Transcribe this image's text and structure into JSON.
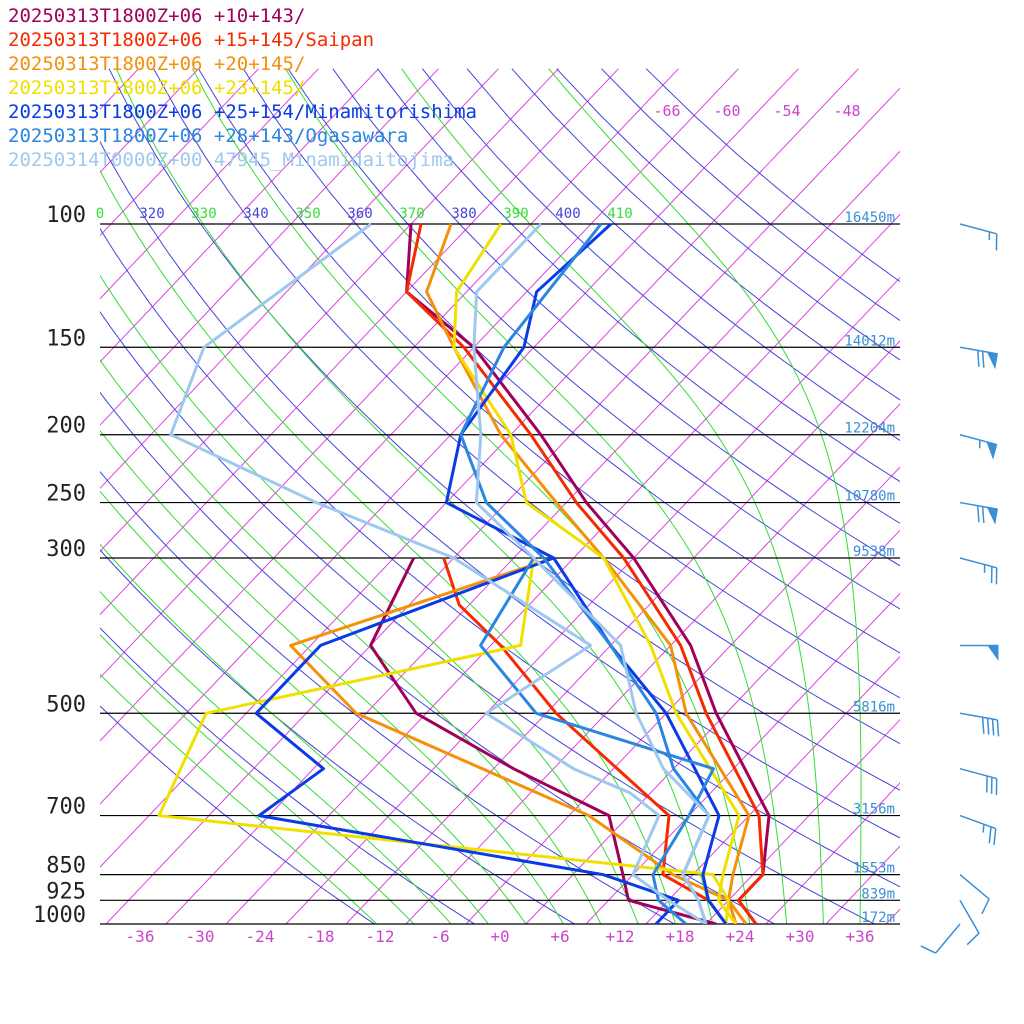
{
  "legend": [
    {
      "label": "20250313T1800Z+06 +10+143/",
      "color": "#a0005a"
    },
    {
      "label": "20250313T1800Z+06 +15+145/Saipan",
      "color": "#f52a00"
    },
    {
      "label": "20250313T1800Z+06 +20+145/",
      "color": "#f5900a"
    },
    {
      "label": "20250313T1800Z+06 +23+145/",
      "color": "#f0e000"
    },
    {
      "label": "20250313T1800Z+06 +25+154/Minamitorishima",
      "color": "#0a3ce6"
    },
    {
      "label": "20250313T1800Z+06 +28+143/Ogasawara",
      "color": "#2a86e0"
    },
    {
      "label": "20250314T0000Z+00 47945_Minamidaitojima",
      "color": "#9ec8f0"
    }
  ],
  "colors": {
    "isobar": "#000000",
    "isotherm": "#dd44dd",
    "dry_adiabat": "#4444dd",
    "moist_adiabat": "#33dd33",
    "height_label": "#3a8fd6",
    "wind_barb": "#3a8fd6"
  },
  "chart_data": {
    "type": "skew-t log-p",
    "title": "",
    "xlabel": "",
    "ylabel": "",
    "pressure_levels": [
      {
        "p": 100,
        "label": "100",
        "height": "16450m"
      },
      {
        "p": 150,
        "label": "150",
        "height": "14012m"
      },
      {
        "p": 200,
        "label": "200",
        "height": "12204m"
      },
      {
        "p": 250,
        "label": "250",
        "height": "10780m"
      },
      {
        "p": 300,
        "label": "300",
        "height": "9538m"
      },
      {
        "p": 500,
        "label": "500",
        "height": "5816m"
      },
      {
        "p": 700,
        "label": "700",
        "height": "3156m"
      },
      {
        "p": 850,
        "label": "850",
        "height": "1553m"
      },
      {
        "p": 925,
        "label": "925",
        "height": "839m"
      },
      {
        "p": 1000,
        "label": "1000",
        "height": "172m"
      }
    ],
    "temperature_ticks": [
      "-36",
      "-30",
      "-24",
      "-18",
      "-12",
      "-6",
      "+0",
      "+6",
      "+12",
      "+18",
      "+24",
      "+30",
      "+36"
    ],
    "mixing_ratio_labels": [
      "-66",
      "-60",
      "-54",
      "-48"
    ],
    "theta_labels": [
      {
        "text": "0",
        "kind": "moist"
      },
      {
        "text": "320",
        "kind": "dry"
      },
      {
        "text": "330",
        "kind": "moist"
      },
      {
        "text": "340",
        "kind": "dry"
      },
      {
        "text": "350",
        "kind": "moist"
      },
      {
        "text": "360",
        "kind": "dry"
      },
      {
        "text": "370",
        "kind": "moist"
      },
      {
        "text": "380",
        "kind": "dry"
      },
      {
        "text": "390",
        "kind": "moist"
      },
      {
        "text": "400",
        "kind": "dry"
      },
      {
        "text": "410",
        "kind": "moist"
      }
    ],
    "series": [
      {
        "name": "20250313T1800Z+06 +10+143/",
        "color": "#a0005a",
        "temperature": [
          [
            1000,
            25
          ],
          [
            925,
            21
          ],
          [
            850,
            21
          ],
          [
            700,
            16
          ],
          [
            500,
            1
          ],
          [
            400,
            -8
          ],
          [
            300,
            -22
          ],
          [
            250,
            -32
          ],
          [
            200,
            -43
          ],
          [
            150,
            -58
          ],
          [
            125,
            -70
          ],
          [
            100,
            -76
          ]
        ],
        "dewpoint": [
          [
            1000,
            21
          ],
          [
            925,
            10
          ],
          [
            850,
            7
          ],
          [
            700,
            0
          ],
          [
            600,
            -14
          ],
          [
            500,
            -29
          ],
          [
            400,
            -40
          ],
          [
            300,
            -44
          ]
        ]
      },
      {
        "name": "20250313T1800Z+06 +15+145/Saipan",
        "color": "#f52a00",
        "temperature": [
          [
            1000,
            25
          ],
          [
            925,
            21
          ],
          [
            850,
            21
          ],
          [
            700,
            15
          ],
          [
            500,
            0
          ],
          [
            400,
            -9
          ],
          [
            300,
            -23
          ],
          [
            250,
            -33
          ],
          [
            200,
            -44
          ],
          [
            150,
            -59
          ],
          [
            125,
            -70
          ],
          [
            100,
            -75
          ]
        ],
        "dewpoint": [
          [
            1000,
            22
          ],
          [
            925,
            18
          ],
          [
            850,
            11
          ],
          [
            700,
            6
          ],
          [
            500,
            -15
          ],
          [
            400,
            -27
          ],
          [
            350,
            -35
          ],
          [
            300,
            -41
          ]
        ]
      },
      {
        "name": "20250313T1800Z+06 +20+145/",
        "color": "#f5900a",
        "temperature": [
          [
            1000,
            24
          ],
          [
            925,
            20
          ],
          [
            850,
            18
          ],
          [
            700,
            14
          ],
          [
            500,
            -2
          ],
          [
            400,
            -10
          ],
          [
            300,
            -25
          ],
          [
            250,
            -35
          ],
          [
            200,
            -47
          ],
          [
            150,
            -60
          ],
          [
            125,
            -68
          ],
          [
            100,
            -72
          ]
        ],
        "dewpoint": [
          [
            1000,
            23
          ],
          [
            925,
            20
          ],
          [
            850,
            12
          ],
          [
            700,
            -2
          ],
          [
            500,
            -35
          ],
          [
            400,
            -48
          ],
          [
            300,
            -30
          ]
        ]
      },
      {
        "name": "20250313T1800Z+06 +23+145/",
        "color": "#f0e000",
        "temperature": [
          [
            1000,
            23
          ],
          [
            925,
            19
          ],
          [
            850,
            17
          ],
          [
            700,
            13
          ],
          [
            500,
            -3
          ],
          [
            400,
            -12
          ],
          [
            300,
            -25
          ],
          [
            250,
            -38
          ],
          [
            200,
            -46
          ],
          [
            150,
            -60
          ],
          [
            125,
            -65
          ],
          [
            100,
            -67
          ]
        ],
        "dewpoint": [
          [
            1000,
            22
          ],
          [
            925,
            20
          ],
          [
            850,
            16
          ],
          [
            700,
            -45
          ],
          [
            500,
            -50
          ],
          [
            400,
            -25
          ],
          [
            300,
            -32
          ]
        ]
      },
      {
        "name": "20250313T1800Z+06 +25+154/Minamitorishima",
        "color": "#0a3ce6",
        "temperature": [
          [
            1000,
            22
          ],
          [
            925,
            18
          ],
          [
            850,
            15
          ],
          [
            700,
            11
          ],
          [
            500,
            -4
          ],
          [
            400,
            -16
          ],
          [
            300,
            -30
          ],
          [
            250,
            -46
          ],
          [
            200,
            -51
          ],
          [
            150,
            -53
          ],
          [
            125,
            -57
          ],
          [
            100,
            -56
          ]
        ],
        "dewpoint": [
          [
            1000,
            15
          ],
          [
            925,
            15
          ],
          [
            850,
            5
          ],
          [
            700,
            -35
          ],
          [
            600,
            -33
          ],
          [
            500,
            -45
          ],
          [
            400,
            -45
          ],
          [
            300,
            -30
          ]
        ]
      },
      {
        "name": "20250313T1800Z+06 +28+143/Ogasawara",
        "color": "#2a86e0",
        "temperature": [
          [
            1000,
            20
          ],
          [
            925,
            17
          ],
          [
            850,
            13
          ],
          [
            700,
            10
          ],
          [
            600,
            2
          ],
          [
            500,
            -5
          ],
          [
            400,
            -16
          ],
          [
            300,
            -31
          ],
          [
            250,
            -42
          ],
          [
            200,
            -51
          ],
          [
            150,
            -55
          ],
          [
            100,
            -57
          ]
        ],
        "dewpoint": [
          [
            1000,
            18
          ],
          [
            925,
            13
          ],
          [
            850,
            10
          ],
          [
            700,
            8
          ],
          [
            600,
            6
          ],
          [
            500,
            -17
          ],
          [
            400,
            -29
          ],
          [
            300,
            -32
          ]
        ]
      },
      {
        "name": "20250314T0000Z+00 47945_Minamidaitojima",
        "color": "#9ec8f0",
        "temperature": [
          [
            1000,
            20
          ],
          [
            925,
            17
          ],
          [
            850,
            13
          ],
          [
            700,
            10
          ],
          [
            600,
            1
          ],
          [
            500,
            -7
          ],
          [
            400,
            -15
          ],
          [
            300,
            -32
          ],
          [
            250,
            -43
          ],
          [
            200,
            -49
          ],
          [
            150,
            -58
          ],
          [
            125,
            -63
          ],
          [
            100,
            -63
          ]
        ],
        "dewpoint": [
          [
            1000,
            20
          ],
          [
            925,
            14
          ],
          [
            850,
            8
          ],
          [
            700,
            5
          ],
          [
            650,
            0
          ],
          [
            600,
            -8
          ],
          [
            500,
            -22
          ],
          [
            400,
            -18
          ],
          [
            300,
            -40
          ],
          [
            250,
            -59
          ],
          [
            200,
            -80
          ],
          [
            150,
            -85
          ],
          [
            100,
            -80
          ]
        ]
      }
    ],
    "wind_barbs": [
      {
        "p": 100,
        "speed_kt": 15,
        "direction": 285
      },
      {
        "p": 150,
        "speed_kt": 70,
        "direction": 280
      },
      {
        "p": 200,
        "speed_kt": 55,
        "direction": 285
      },
      {
        "p": 250,
        "speed_kt": 70,
        "direction": 280
      },
      {
        "p": 300,
        "speed_kt": 25,
        "direction": 285
      },
      {
        "p": 400,
        "speed_kt": 50,
        "direction": 270
      },
      {
        "p": 500,
        "speed_kt": 40,
        "direction": 280
      },
      {
        "p": 600,
        "speed_kt": 30,
        "direction": 285
      },
      {
        "p": 700,
        "speed_kt": 25,
        "direction": 290
      },
      {
        "p": 850,
        "speed_kt": 10,
        "direction": 310
      },
      {
        "p": 925,
        "speed_kt": 10,
        "direction": 330
      },
      {
        "p": 1000,
        "speed_kt": 10,
        "direction": 40
      }
    ]
  }
}
